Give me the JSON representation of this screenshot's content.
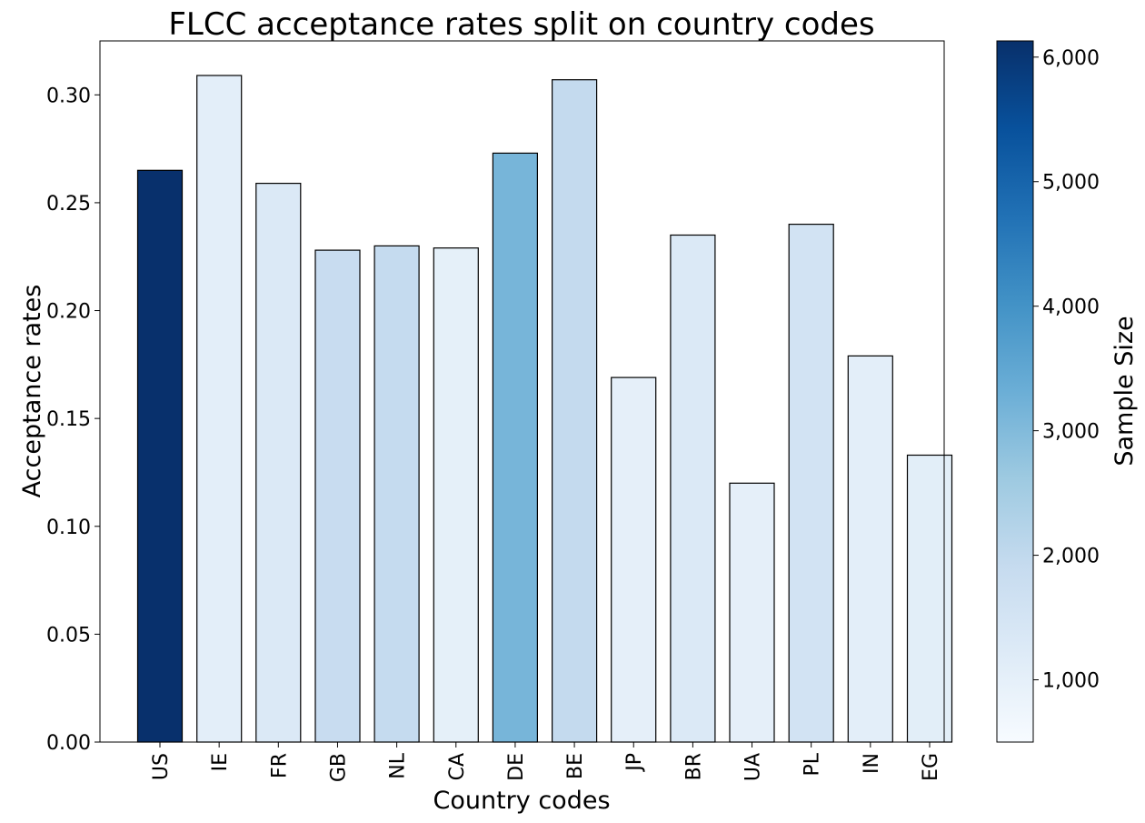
{
  "chart_data": {
    "type": "bar",
    "title": "FLCC acceptance rates split on country codes",
    "xlabel": "Country codes",
    "ylabel": "Acceptance rates",
    "ylim": [
      0,
      0.325
    ],
    "yticks": [
      "0.00",
      "0.05",
      "0.10",
      "0.15",
      "0.20",
      "0.25",
      "0.30"
    ],
    "categories": [
      "US",
      "IE",
      "FR",
      "GB",
      "NL",
      "CA",
      "DE",
      "BE",
      "JP",
      "BR",
      "UA",
      "PL",
      "IN",
      "EG"
    ],
    "values": [
      0.265,
      0.309,
      0.259,
      0.228,
      0.23,
      0.229,
      0.273,
      0.307,
      0.169,
      0.235,
      0.12,
      0.24,
      0.179,
      0.133
    ],
    "sample_sizes": [
      6120,
      1050,
      1280,
      1850,
      1920,
      1000,
      3150,
      1950,
      1020,
      1300,
      1020,
      1550,
      1050,
      1080
    ],
    "grid": false,
    "colorbar": {
      "label": "Sample Size",
      "range": [
        500,
        6130
      ],
      "ticks": [
        1000,
        2000,
        3000,
        4000,
        5000,
        6000
      ],
      "tick_labels": [
        "1,000",
        "2,000",
        "3,000",
        "4,000",
        "5,000",
        "6,000"
      ],
      "colormap": "Blues"
    },
    "bar_edge_color": "#000000"
  }
}
